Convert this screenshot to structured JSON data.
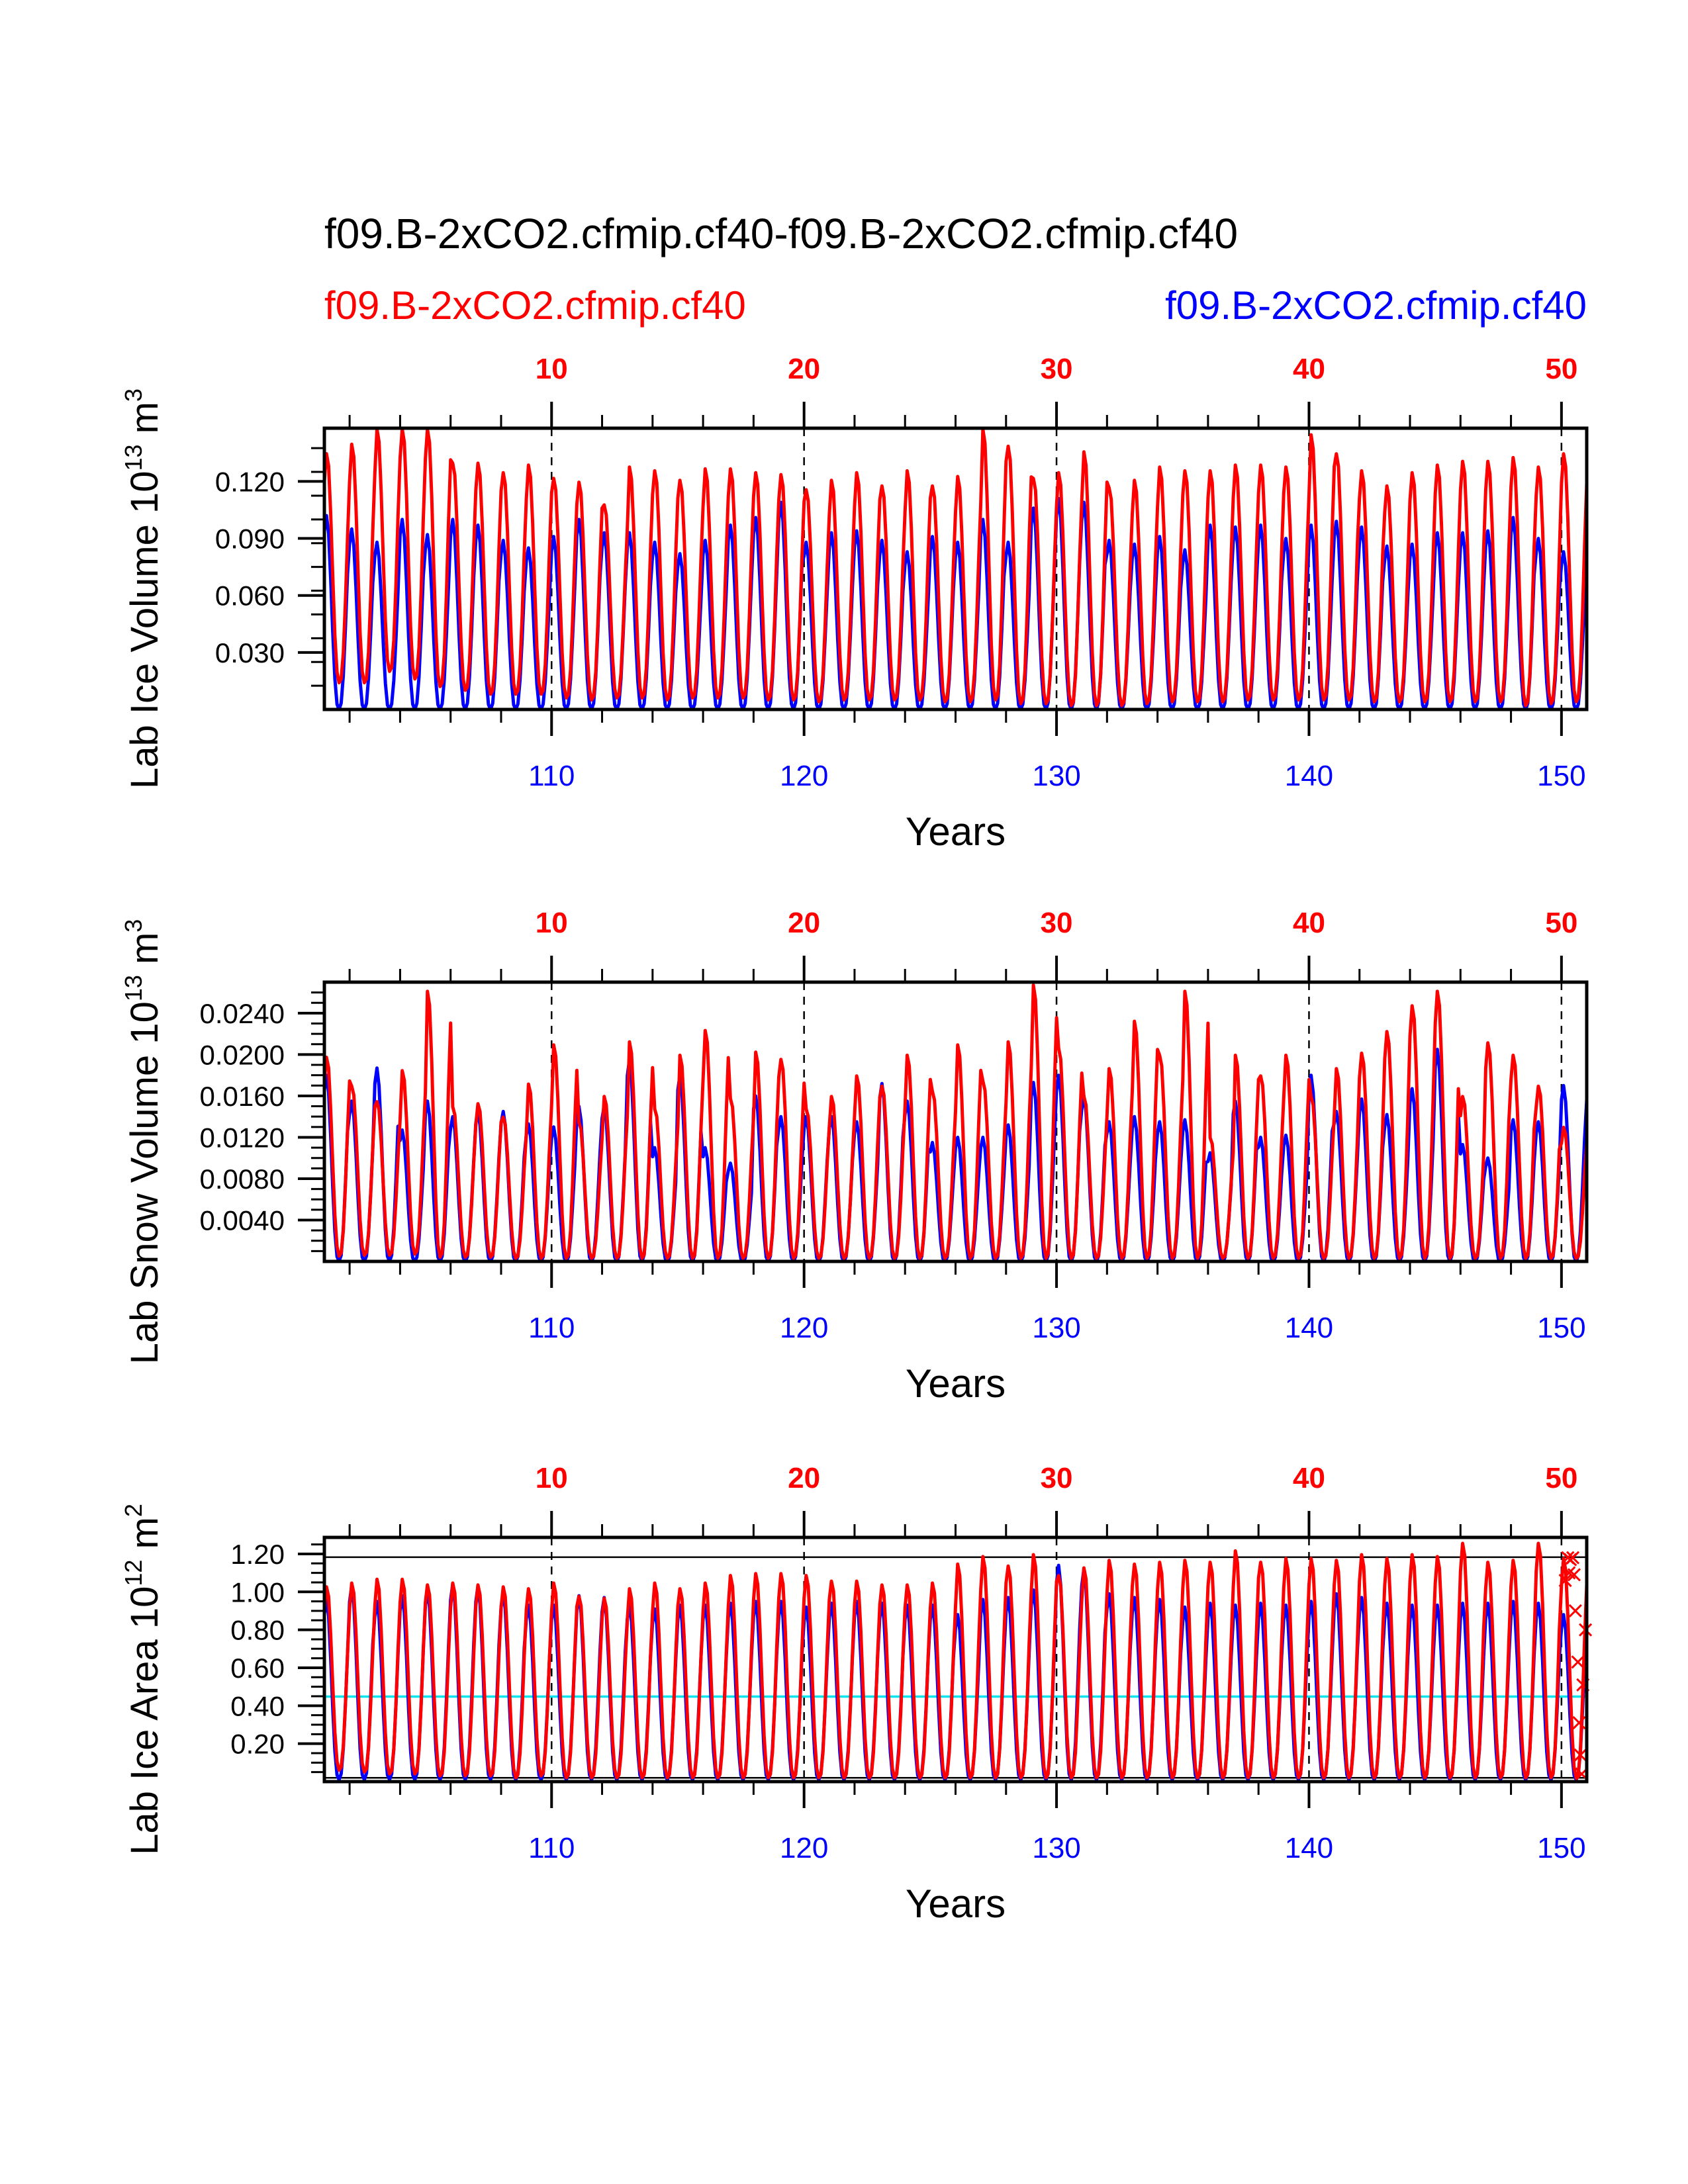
{
  "chart_data": {
    "type": "line",
    "title": "f09.B-2xCO2.cfmip.cf40-f09.B-2xCO2.cfmip.cf40",
    "legend": [
      {
        "name": "f09.B-2xCO2.cfmip.cf40",
        "color": "#ff0000",
        "placement": "top-left"
      },
      {
        "name": "f09.B-2xCO2.cfmip.cf40",
        "color": "#0000ff",
        "placement": "top-right"
      }
    ],
    "colors": {
      "series_a": "#ff0000",
      "series_b": "#0000ff",
      "reference_line": "#000000",
      "mean_line": "#00e5ee",
      "grid": "#000000"
    },
    "x_axis": {
      "label": "Years",
      "range": [
        101,
        151
      ],
      "bottom_ticks": [
        110,
        120,
        130,
        140,
        150
      ],
      "bottom_tick_color": "#0000ff",
      "top_ticks": [
        10,
        20,
        30,
        40,
        50
      ],
      "top_tick_offset_years": 100,
      "top_tick_color": "#ff0000",
      "minor_tick_step": 2,
      "dashed_gridlines_at": [
        110,
        120,
        130,
        140,
        150
      ]
    },
    "panels": [
      {
        "id": "ice-volume",
        "ylabel": "Lab Ice Volume 10",
        "ylabel_exp": "13",
        "ylabel_unit": " m",
        "ylabel_unit_exp": "3",
        "ylim": [
          0,
          0.148
        ],
        "yticks": [
          0.03,
          0.06,
          0.09,
          0.12
        ],
        "ytick_labels": [
          "0.030",
          "0.060",
          "0.090",
          "0.120"
        ],
        "yminor_step": 0.0125,
        "series": [
          {
            "name": "f09.B-2xCO2.cfmip.cf40",
            "color": "#ff0000",
            "annual_peak": [
              0.135,
              0.14,
              0.148,
              0.148,
              0.148,
              0.13,
              0.13,
              0.125,
              0.129,
              0.122,
              0.12,
              0.108,
              0.128,
              0.126,
              0.121,
              0.127,
              0.127,
              0.125,
              0.124,
              0.116,
              0.121,
              0.125,
              0.118,
              0.126,
              0.118,
              0.123,
              0.148,
              0.139,
              0.122,
              0.125,
              0.136,
              0.117,
              0.121,
              0.128,
              0.126,
              0.126,
              0.129,
              0.129,
              0.128,
              0.145,
              0.135,
              0.126,
              0.118,
              0.125,
              0.129,
              0.131,
              0.131,
              0.133,
              0.128,
              0.135
            ],
            "annual_min": [
              0.014,
              0.014,
              0.02,
              0.016,
              0.012,
              0.01,
              0.008,
              0.008,
              0.008,
              0.006,
              0.005,
              0.006,
              0.006,
              0.005,
              0.006,
              0.006,
              0.006,
              0.005,
              0.005,
              0.004,
              0.005,
              0.005,
              0.005,
              0.005,
              0.004,
              0.004,
              0.005,
              0.003,
              0.003,
              0.002,
              0.002,
              0.002,
              0.003,
              0.004,
              0.004,
              0.004,
              0.005,
              0.005,
              0.005,
              0.005,
              0.005,
              0.004,
              0.004,
              0.004,
              0.004,
              0.004,
              0.004,
              0.002,
              0.003,
              0.004
            ]
          },
          {
            "name": "f09.B-2xCO2.cfmip.cf40",
            "color": "#0000ff",
            "annual_peak": [
              0.102,
              0.095,
              0.088,
              0.1,
              0.092,
              0.1,
              0.097,
              0.089,
              0.085,
              0.091,
              0.1,
              0.093,
              0.093,
              0.088,
              0.082,
              0.089,
              0.097,
              0.101,
              0.109,
              0.088,
              0.093,
              0.094,
              0.089,
              0.083,
              0.091,
              0.088,
              0.1,
              0.088,
              0.106,
              0.111,
              0.109,
              0.089,
              0.087,
              0.091,
              0.084,
              0.097,
              0.096,
              0.097,
              0.09,
              0.097,
              0.099,
              0.096,
              0.086,
              0.087,
              0.093,
              0.093,
              0.094,
              0.101,
              0.09,
              0.083
            ],
            "annual_min": [
              0.0,
              0.0,
              0.0,
              0.0,
              0.0,
              0.0,
              0.0,
              0.0,
              0.0,
              0.0,
              0.0,
              0.0,
              0.0,
              0.0,
              0.0,
              0.0,
              0.0,
              0.0,
              0.0,
              0.0,
              0.0,
              0.0,
              0.0,
              0.0,
              0.0,
              0.0,
              0.0,
              0.0,
              0.0,
              0.0,
              0.0,
              0.0,
              0.0,
              0.0,
              0.0,
              0.0,
              0.0,
              0.0,
              0.0,
              0.0,
              0.0,
              0.0,
              0.0,
              0.0,
              0.0,
              0.0,
              0.0,
              0.0,
              0.0,
              0.0
            ]
          }
        ]
      },
      {
        "id": "snow-volume",
        "ylabel": "Lab Snow Volume 10",
        "ylabel_exp": "13",
        "ylabel_unit": " m",
        "ylabel_unit_exp": "3",
        "ylim": [
          0,
          0.027
        ],
        "yticks": [
          0.004,
          0.008,
          0.012,
          0.016,
          0.02,
          0.024
        ],
        "ytick_labels": [
          "0.0040",
          "0.0080",
          "0.0120",
          "0.0160",
          "0.0200",
          "0.0240"
        ],
        "yminor_step": 0.001,
        "series": [
          {
            "name": "f09.B-2xCO2.cfmip.cf40",
            "color": "#ff0000",
            "annual_peak": [
              0.0198,
              0.017,
              0.0155,
              0.0185,
              0.0262,
              0.015,
              0.0153,
              0.014,
              0.0172,
              0.021,
              0.0135,
              0.016,
              0.0213,
              0.0148,
              0.02,
              0.0224,
              0.0158,
              0.0203,
              0.0196,
              0.0148,
              0.016,
              0.018,
              0.017,
              0.02,
              0.0165,
              0.021,
              0.0175,
              0.0213,
              0.0268,
              0.0207,
              0.016,
              0.0187,
              0.0233,
              0.02,
              0.0262,
              0.012,
              0.02,
              0.018,
              0.02,
              0.016,
              0.0187,
              0.0202,
              0.0223,
              0.0248,
              0.0262,
              0.016,
              0.0212,
              0.02,
              0.017,
              0.013
            ],
            "annual_min": [
              0.0005,
              0.0006,
              0.0006,
              0.0007,
              0.0004,
              0.0004,
              0.0004,
              0.0003,
              0.0003,
              0.0003,
              0.0003,
              0.0003,
              0.0003,
              0.0003,
              0.0003,
              0.0003,
              0.0003,
              0.0003,
              0.0003,
              0.0003,
              0.0003,
              0.0003,
              0.0003,
              0.0003,
              0.0003,
              0.0003,
              0.0003,
              0.0003,
              0.0003,
              0.0003,
              0.0003,
              0.0003,
              0.0003,
              0.0003,
              0.0003,
              0.0003,
              0.0003,
              0.0003,
              0.0003,
              0.0003,
              0.0003,
              0.0003,
              0.0003,
              0.0003,
              0.0003,
              0.0003,
              0.0003,
              0.0003,
              0.0003,
              0.0003
            ]
          },
          {
            "name": "f09.B-2xCO2.cfmip.cf40",
            "color": "#0000ff",
            "annual_peak": [
              0.018,
              0.0155,
              0.0187,
              0.0127,
              0.0155,
              0.014,
              0.0145,
              0.0145,
              0.0133,
              0.013,
              0.015,
              0.015,
              0.0195,
              0.011,
              0.018,
              0.011,
              0.0095,
              0.016,
              0.014,
              0.014,
              0.014,
              0.0135,
              0.0172,
              0.0155,
              0.0115,
              0.012,
              0.012,
              0.0132,
              0.0173,
              0.018,
              0.016,
              0.0135,
              0.014,
              0.0135,
              0.0137,
              0.0105,
              0.0155,
              0.012,
              0.0122,
              0.018,
              0.0145,
              0.0157,
              0.0142,
              0.0167,
              0.0205,
              0.0113,
              0.01,
              0.0137,
              0.0135,
              0.017
            ],
            "annual_min": [
              0.0,
              0.0,
              0.0,
              0.0,
              0.0,
              0.0,
              0.0,
              0.0,
              0.0,
              0.0,
              0.0,
              0.0,
              0.0,
              0.0,
              0.0,
              0.0,
              0.0,
              0.0,
              0.0,
              0.0,
              0.0,
              0.0,
              0.0,
              0.0,
              0.0,
              0.0,
              0.0,
              0.0,
              0.0,
              0.0,
              0.0,
              0.0,
              0.0,
              0.0,
              0.0,
              0.0,
              0.0,
              0.0,
              0.0,
              0.0,
              0.0,
              0.0,
              0.0,
              0.0,
              0.0,
              0.0,
              0.0,
              0.0,
              0.0,
              0.0
            ]
          }
        ]
      },
      {
        "id": "ice-area",
        "ylabel": "Lab Ice Area 10",
        "ylabel_exp": "12",
        "ylabel_unit": " m",
        "ylabel_unit_exp": "2",
        "ylim": [
          0,
          1.287
        ],
        "yticks": [
          0.2,
          0.4,
          0.6,
          0.8,
          1.0,
          1.2
        ],
        "ytick_labels": [
          "0.20",
          "0.40",
          "0.60",
          "0.80",
          "1.00",
          "1.20"
        ],
        "yminor_step": 0.05,
        "reference_lines": [
          {
            "value": 1.183,
            "color": "#000000"
          },
          {
            "value": 0.448,
            "color": "#00e5ee"
          },
          {
            "value": 0.02,
            "color": "#000000"
          }
        ],
        "markers": {
          "symbol": "x",
          "color": "#ff0000",
          "points": [
            {
              "x": 150.25,
              "y": 1.18
            },
            {
              "x": 150.35,
              "y": 1.17
            },
            {
              "x": 150.45,
              "y": 1.18
            },
            {
              "x": 150.3,
              "y": 1.1
            },
            {
              "x": 150.5,
              "y": 1.09
            },
            {
              "x": 150.15,
              "y": 1.06
            },
            {
              "x": 150.55,
              "y": 0.9
            },
            {
              "x": 150.95,
              "y": 0.8
            },
            {
              "x": 150.65,
              "y": 0.63
            },
            {
              "x": 150.85,
              "y": 0.51
            },
            {
              "x": 150.7,
              "y": 0.31
            },
            {
              "x": 150.75,
              "y": 0.14
            },
            {
              "x": 150.8,
              "y": 0.04
            }
          ]
        },
        "series": [
          {
            "name": "f09.B-2xCO2.cfmip.cf40",
            "color": "#ff0000",
            "annual_peak": [
              1.03,
              1.05,
              1.07,
              1.07,
              1.04,
              1.05,
              1.04,
              1.03,
              1.02,
              1.05,
              0.98,
              0.97,
              1.02,
              1.05,
              1.02,
              1.05,
              1.09,
              1.1,
              1.1,
              1.09,
              1.06,
              1.06,
              1.04,
              1.04,
              1.05,
              1.15,
              1.19,
              1.14,
              1.2,
              1.09,
              1.13,
              1.17,
              1.15,
              1.16,
              1.17,
              1.16,
              1.22,
              1.16,
              1.18,
              1.18,
              1.17,
              1.2,
              1.18,
              1.2,
              1.19,
              1.26,
              1.16,
              1.17,
              1.26,
              1.18
            ],
            "annual_min": [
              0.06,
              0.05,
              0.04,
              0.04,
              0.03,
              0.03,
              0.03,
              0.02,
              0.03,
              0.02,
              0.02,
              0.02,
              0.02,
              0.02,
              0.02,
              0.02,
              0.02,
              0.02,
              0.02,
              0.02,
              0.02,
              0.02,
              0.02,
              0.02,
              0.02,
              0.02,
              0.02,
              0.02,
              0.02,
              0.02,
              0.02,
              0.02,
              0.02,
              0.02,
              0.02,
              0.02,
              0.02,
              0.02,
              0.02,
              0.02,
              0.02,
              0.02,
              0.02,
              0.02,
              0.02,
              0.02,
              0.02,
              0.02,
              0.02,
              0.02
            ]
          },
          {
            "name": "f09.B-2xCO2.cfmip.cf40",
            "color": "#0000ff",
            "annual_peak": [
              0.96,
              1.03,
              0.95,
              0.98,
              1.01,
              1.04,
              1.03,
              1.0,
              0.93,
              0.93,
              0.98,
              0.97,
              0.93,
              0.91,
              0.93,
              0.93,
              0.94,
              0.95,
              0.95,
              0.92,
              0.94,
              0.95,
              0.94,
              0.93,
              0.93,
              0.88,
              0.96,
              0.97,
              1.01,
              1.14,
              1.12,
              0.99,
              0.97,
              0.96,
              0.92,
              0.94,
              0.93,
              0.94,
              0.93,
              0.95,
              0.99,
              0.97,
              0.94,
              0.93,
              0.93,
              0.94,
              0.94,
              0.95,
              0.94,
              0.88
            ],
            "annual_min": [
              0.01,
              0.01,
              0.01,
              0.01,
              0.01,
              0.01,
              0.01,
              0.01,
              0.01,
              0.01,
              0.01,
              0.01,
              0.01,
              0.01,
              0.01,
              0.01,
              0.01,
              0.01,
              0.01,
              0.01,
              0.01,
              0.01,
              0.01,
              0.01,
              0.01,
              0.01,
              0.01,
              0.01,
              0.01,
              0.01,
              0.01,
              0.01,
              0.01,
              0.01,
              0.01,
              0.01,
              0.01,
              0.01,
              0.01,
              0.01,
              0.01,
              0.01,
              0.01,
              0.01,
              0.01,
              0.01,
              0.01,
              0.01,
              0.01,
              0.01
            ]
          }
        ]
      }
    ]
  }
}
